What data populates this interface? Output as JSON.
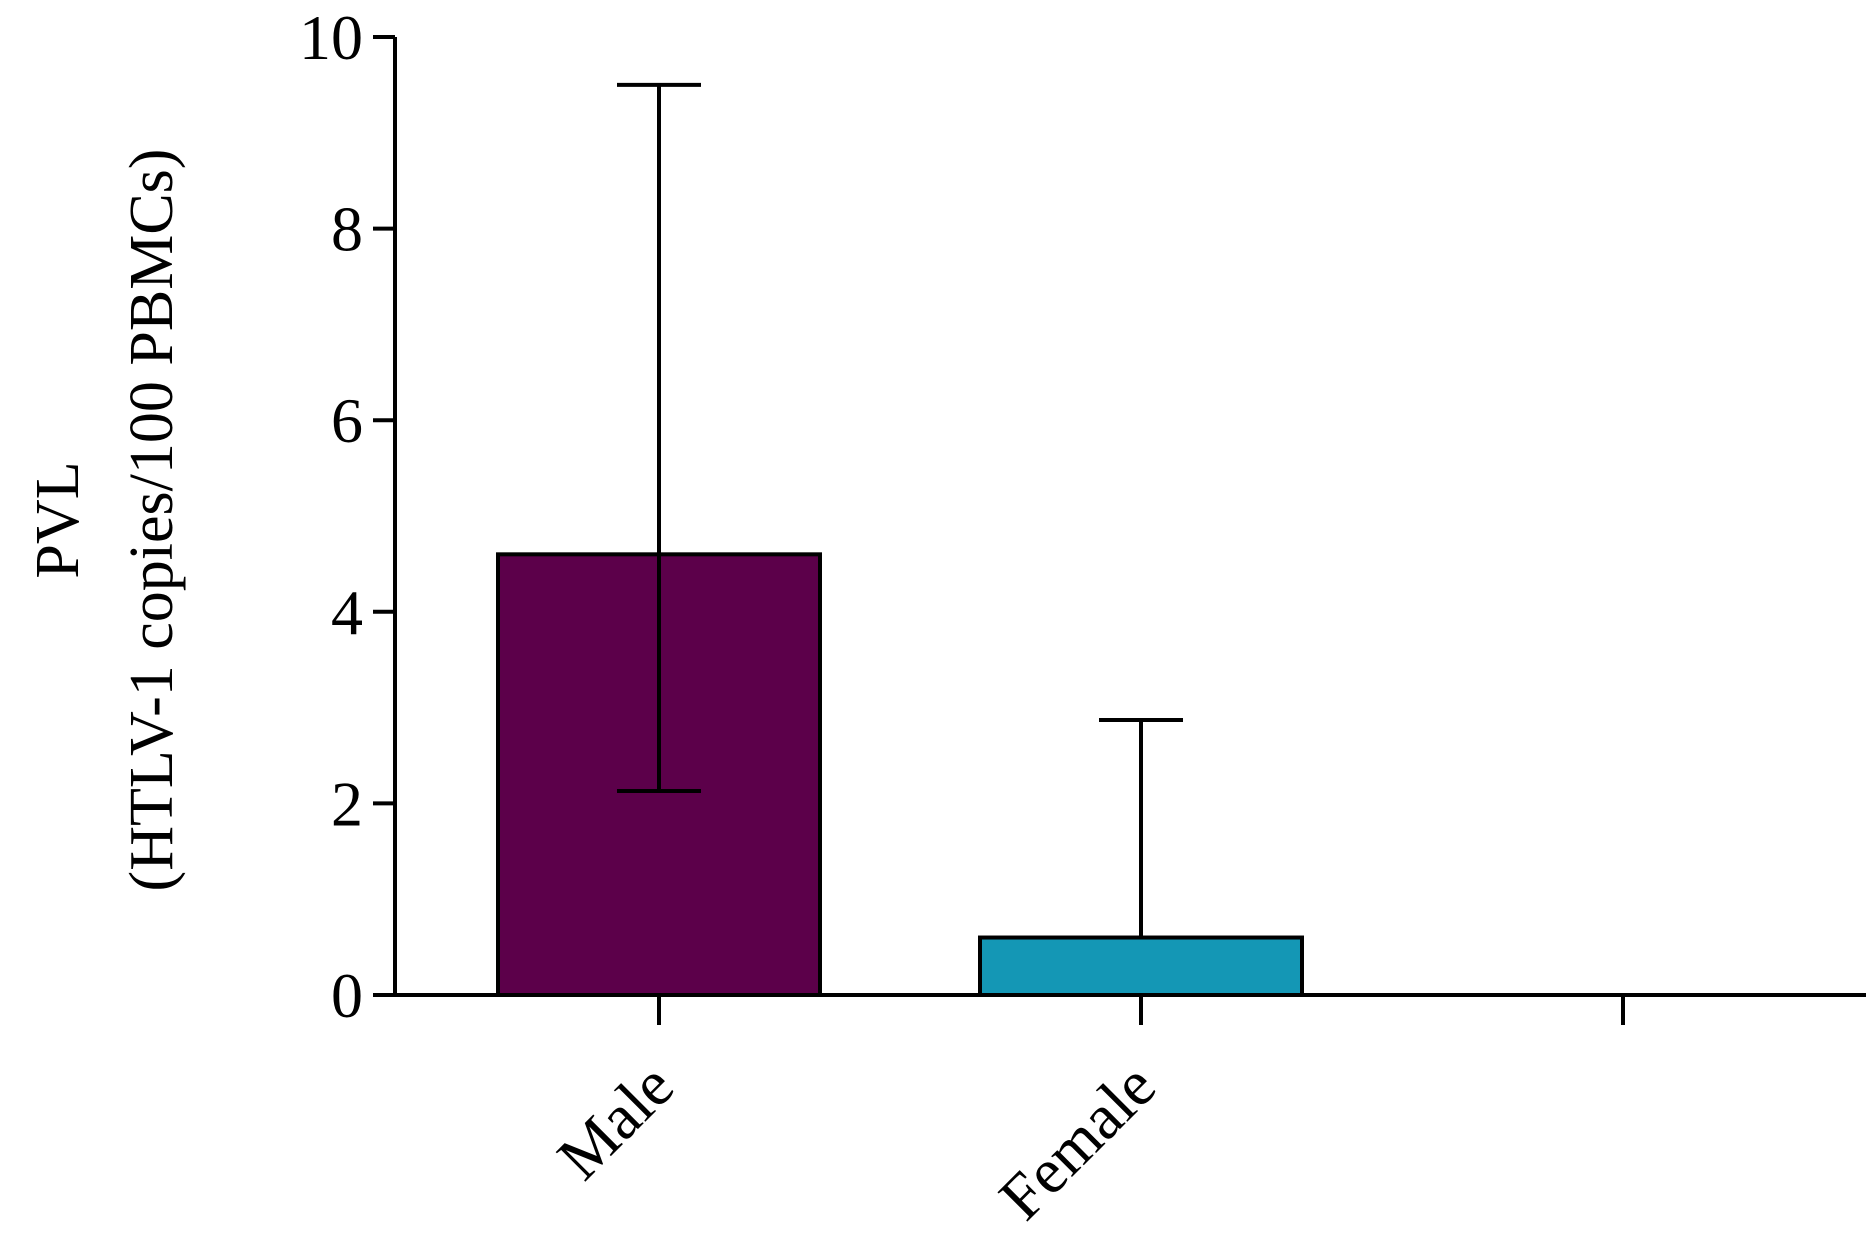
{
  "chart_data": {
    "type": "bar",
    "title": "",
    "xlabel": "",
    "ylabel": "PVL",
    "ylabel_line2": "(HTLV-1 copies/100 PBMCs)",
    "categories": [
      "Male",
      "Female",
      ""
    ],
    "values": [
      4.6,
      0.6,
      null
    ],
    "error_upper": [
      9.5,
      2.87,
      null
    ],
    "error_lower": [
      2.13,
      null,
      null
    ],
    "colors": [
      "#5c004a",
      "#1497b5",
      null
    ],
    "ylim": [
      0,
      10
    ],
    "yticks": [
      "0",
      "2",
      "4",
      "6",
      "8",
      "10"
    ],
    "grid": false,
    "legend": "none"
  }
}
